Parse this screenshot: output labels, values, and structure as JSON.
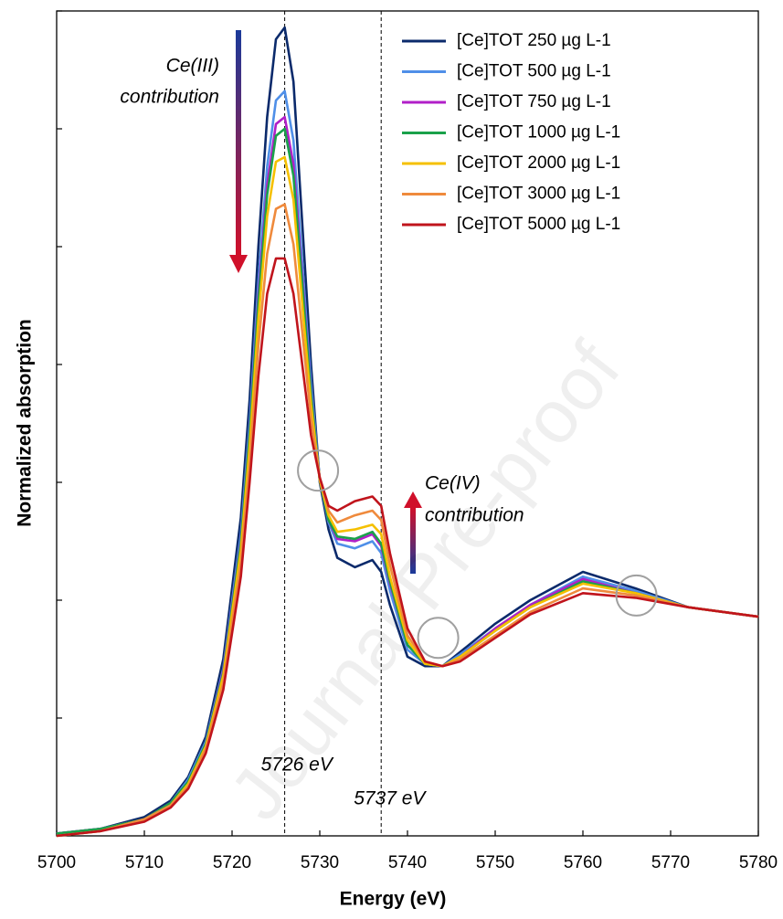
{
  "chart_data": {
    "type": "line",
    "x_label": "Energy (eV)",
    "y_label": "Normalized absorption",
    "xlim": [
      5700,
      5780
    ],
    "xticks": [
      5700,
      5710,
      5720,
      5730,
      5740,
      5750,
      5760,
      5770,
      5780
    ],
    "ylim": [
      0,
      3.5
    ],
    "yticks": [
      0,
      0.5,
      1,
      1.5,
      2,
      2.5,
      3,
      3.5
    ],
    "legend": "top-right",
    "x": [
      5700,
      5705,
      5710,
      5713,
      5715,
      5717,
      5719,
      5721,
      5722,
      5723,
      5724,
      5725,
      5726,
      5727,
      5728,
      5729,
      5730,
      5731,
      5732,
      5734,
      5736,
      5737,
      5738,
      5740,
      5742,
      5744,
      5746,
      5750,
      5754,
      5760,
      5766,
      5772,
      5780
    ],
    "series": [
      {
        "name": "[Ce]TOT 250 µg L-1",
        "color": "#0b2a6b",
        "values": [
          0.01,
          0.03,
          0.08,
          0.15,
          0.25,
          0.42,
          0.75,
          1.35,
          1.85,
          2.5,
          3.05,
          3.38,
          3.43,
          3.2,
          2.6,
          2.0,
          1.5,
          1.3,
          1.18,
          1.14,
          1.17,
          1.12,
          0.98,
          0.76,
          0.72,
          0.72,
          0.78,
          0.9,
          1.0,
          1.12,
          1.05,
          0.97,
          0.93
        ]
      },
      {
        "name": "[Ce]TOT 500 µg L-1",
        "color": "#4f8fe8",
        "values": [
          0.01,
          0.03,
          0.07,
          0.14,
          0.24,
          0.4,
          0.71,
          1.28,
          1.75,
          2.35,
          2.84,
          3.12,
          3.16,
          2.95,
          2.43,
          1.92,
          1.51,
          1.33,
          1.24,
          1.22,
          1.25,
          1.2,
          1.04,
          0.79,
          0.73,
          0.72,
          0.77,
          0.88,
          0.98,
          1.1,
          1.04,
          0.97,
          0.93
        ]
      },
      {
        "name": "[Ce]TOT 750 µg L-1",
        "color": "#b11fc8",
        "values": [
          0.01,
          0.03,
          0.07,
          0.14,
          0.23,
          0.39,
          0.7,
          1.25,
          1.71,
          2.29,
          2.76,
          3.02,
          3.05,
          2.85,
          2.37,
          1.88,
          1.51,
          1.34,
          1.26,
          1.25,
          1.28,
          1.23,
          1.07,
          0.81,
          0.73,
          0.72,
          0.76,
          0.88,
          0.98,
          1.09,
          1.03,
          0.97,
          0.93
        ]
      },
      {
        "name": "[Ce]TOT 1000 µg L-1",
        "color": "#1aa14a",
        "values": [
          0.01,
          0.03,
          0.07,
          0.14,
          0.23,
          0.39,
          0.69,
          1.24,
          1.7,
          2.26,
          2.72,
          2.97,
          3.0,
          2.8,
          2.34,
          1.87,
          1.51,
          1.34,
          1.27,
          1.26,
          1.29,
          1.24,
          1.08,
          0.81,
          0.73,
          0.72,
          0.76,
          0.87,
          0.97,
          1.08,
          1.03,
          0.97,
          0.93
        ]
      },
      {
        "name": "[Ce]TOT 2000 µg L-1",
        "color": "#f5c000",
        "values": [
          0.0,
          0.02,
          0.07,
          0.13,
          0.22,
          0.38,
          0.68,
          1.21,
          1.65,
          2.19,
          2.63,
          2.86,
          2.88,
          2.7,
          2.26,
          1.83,
          1.51,
          1.36,
          1.29,
          1.3,
          1.32,
          1.28,
          1.1,
          0.83,
          0.73,
          0.72,
          0.76,
          0.87,
          0.97,
          1.07,
          1.03,
          0.97,
          0.93
        ]
      },
      {
        "name": "[Ce]TOT 3000 µg L-1",
        "color": "#ef8a3c",
        "values": [
          0.0,
          0.02,
          0.07,
          0.13,
          0.21,
          0.37,
          0.65,
          1.16,
          1.58,
          2.08,
          2.47,
          2.66,
          2.68,
          2.51,
          2.14,
          1.77,
          1.52,
          1.38,
          1.33,
          1.36,
          1.38,
          1.34,
          1.15,
          0.85,
          0.74,
          0.72,
          0.75,
          0.85,
          0.95,
          1.05,
          1.02,
          0.97,
          0.93
        ]
      },
      {
        "name": "[Ce]TOT 5000 µg L-1",
        "color": "#c0141c",
        "values": [
          0.0,
          0.02,
          0.06,
          0.12,
          0.2,
          0.35,
          0.62,
          1.1,
          1.5,
          1.95,
          2.3,
          2.45,
          2.45,
          2.3,
          2.0,
          1.7,
          1.52,
          1.4,
          1.38,
          1.42,
          1.44,
          1.4,
          1.2,
          0.88,
          0.74,
          0.72,
          0.74,
          0.84,
          0.94,
          1.03,
          1.01,
          0.97,
          0.93
        ]
      }
    ],
    "vlines": [
      5726,
      5737
    ],
    "vline_labels": [
      "5726 eV",
      "5737 eV"
    ],
    "isosbestic_points": {
      "x": [
        5729.8,
        5743.5,
        5766.1
      ],
      "y": [
        1.55,
        0.84,
        1.02
      ]
    },
    "annotations": [
      [
        "Ce(III)",
        "contribution"
      ],
      [
        "Ce(IV)",
        "contribution"
      ]
    ],
    "watermark": "Journal Pre-proof"
  }
}
